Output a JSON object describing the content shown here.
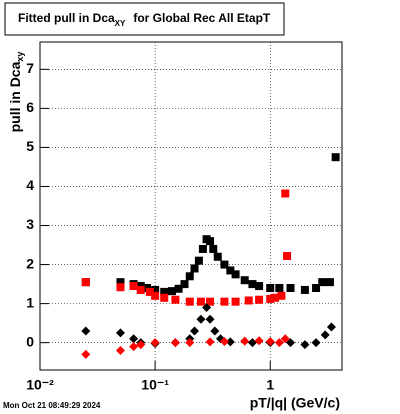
{
  "chart_data": {
    "type": "scatter",
    "title": {
      "text": "Fitted pull in Dca",
      "subscript": "XY",
      "suffix": "for Global Rec All EtapT"
    },
    "y_label": {
      "text": "pull in Dca",
      "subscript": "xy"
    },
    "x_label": "pT/|q| (GeV/c)",
    "timestamp": "Mon Oct 21 08:49:29 2024",
    "log_x": true,
    "grid": true,
    "xlim": [
      0.01,
      4.2
    ],
    "ylim": [
      -0.7,
      7.7
    ],
    "xticks": [
      {
        "value": 0.01,
        "label": "10⁻²"
      },
      {
        "value": 0.1,
        "label": "10⁻¹"
      },
      1
    ],
    "yticks": [
      0,
      1,
      2,
      3,
      4,
      5,
      6,
      7
    ],
    "series": [
      {
        "color": "#000000",
        "marker": "square",
        "x": [
          0.025,
          0.05,
          0.065,
          0.075,
          0.085,
          0.1,
          0.12,
          0.14,
          0.16,
          0.18,
          0.2,
          0.22,
          0.24,
          0.26,
          0.28,
          0.3,
          0.32,
          0.35,
          0.4,
          0.45,
          0.5,
          0.6,
          0.7,
          0.8,
          1.0,
          1.2,
          1.5,
          2.0,
          2.5,
          2.83,
          3.3,
          3.7
        ],
        "values": [
          1.55,
          1.55,
          1.5,
          1.45,
          1.4,
          1.35,
          1.3,
          1.32,
          1.38,
          1.5,
          1.7,
          1.9,
          2.1,
          2.4,
          2.65,
          2.6,
          2.4,
          2.2,
          2.0,
          1.85,
          1.75,
          1.6,
          1.5,
          1.45,
          1.4,
          1.4,
          1.4,
          1.35,
          1.4,
          1.55,
          1.55,
          4.75
        ]
      },
      {
        "color": "#ff0000",
        "marker": "square",
        "x": [
          0.025,
          0.05,
          0.065,
          0.075,
          0.09,
          0.1,
          0.12,
          0.15,
          0.2,
          0.25,
          0.3,
          0.4,
          0.5,
          0.65,
          0.8,
          1.0,
          1.1,
          1.25,
          1.35,
          1.4
        ],
        "values": [
          1.55,
          1.42,
          1.45,
          1.35,
          1.3,
          1.2,
          1.15,
          1.1,
          1.05,
          1.05,
          1.05,
          1.05,
          1.05,
          1.08,
          1.1,
          1.12,
          1.15,
          1.2,
          3.82,
          2.22
        ]
      },
      {
        "color": "#000000",
        "marker": "diamond",
        "x": [
          0.025,
          0.05,
          0.065,
          0.075,
          0.1,
          0.15,
          0.2,
          0.22,
          0.25,
          0.28,
          0.3,
          0.33,
          0.37,
          0.45,
          0.7,
          1.0,
          1.5,
          2.0,
          2.5,
          3.0,
          3.4
        ],
        "values": [
          0.3,
          0.25,
          0.1,
          0.0,
          -0.02,
          0.0,
          0.1,
          0.3,
          0.6,
          0.9,
          0.6,
          0.3,
          0.1,
          0.02,
          0.0,
          0.0,
          0.0,
          -0.05,
          0.0,
          0.2,
          0.4
        ]
      },
      {
        "color": "#ff0000",
        "marker": "diamond",
        "x": [
          0.025,
          0.05,
          0.065,
          0.075,
          0.1,
          0.15,
          0.2,
          0.3,
          0.4,
          0.6,
          0.8,
          1.0,
          1.2,
          1.35
        ],
        "values": [
          -0.3,
          -0.2,
          -0.1,
          -0.05,
          0.0,
          0.0,
          0.0,
          0.02,
          0.03,
          0.04,
          0.05,
          0.03,
          0.0,
          0.1
        ]
      }
    ]
  }
}
